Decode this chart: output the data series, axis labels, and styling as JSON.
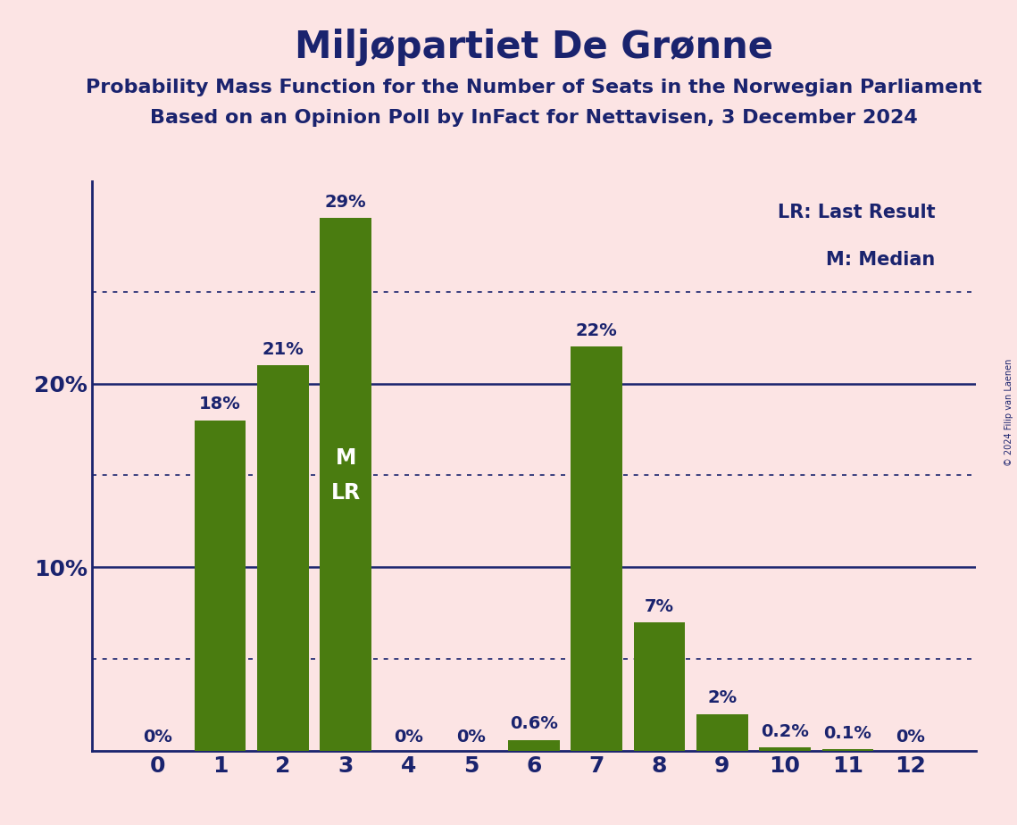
{
  "title": "Miljøpartiet De Grønne",
  "subtitle1": "Probability Mass Function for the Number of Seats in the Norwegian Parliament",
  "subtitle2": "Based on an Opinion Poll by InFact for Nettavisen, 3 December 2024",
  "copyright": "© 2024 Filip van Laenen",
  "categories": [
    0,
    1,
    2,
    3,
    4,
    5,
    6,
    7,
    8,
    9,
    10,
    11,
    12
  ],
  "values": [
    0.0,
    18.0,
    21.0,
    29.0,
    0.0,
    0.0,
    0.6,
    22.0,
    7.0,
    2.0,
    0.2,
    0.1,
    0.0
  ],
  "labels": [
    "0%",
    "18%",
    "21%",
    "29%",
    "0%",
    "0%",
    "0.6%",
    "22%",
    "7%",
    "2%",
    "0.2%",
    "0.1%",
    "0%"
  ],
  "bar_color": "#4a7c10",
  "background_color": "#fce4e4",
  "title_color": "#1a236e",
  "axis_color": "#1a236e",
  "grid_solid_values": [
    10.0,
    20.0
  ],
  "grid_dotted_values": [
    5.0,
    15.0,
    25.0
  ],
  "ylim": [
    0,
    31
  ],
  "yticks": [
    10,
    20
  ],
  "ytick_labels": [
    "10%",
    "20%"
  ],
  "median_bar_idx": 3,
  "legend_lr": "LR: Last Result",
  "legend_m": "M: Median",
  "label_fontsize": 14,
  "title_fontsize": 30,
  "subtitle_fontsize": 16,
  "tick_fontsize": 18,
  "label_color": "#1a236e",
  "inside_label_color": "#ffffff",
  "mlr_fontsize": 17
}
